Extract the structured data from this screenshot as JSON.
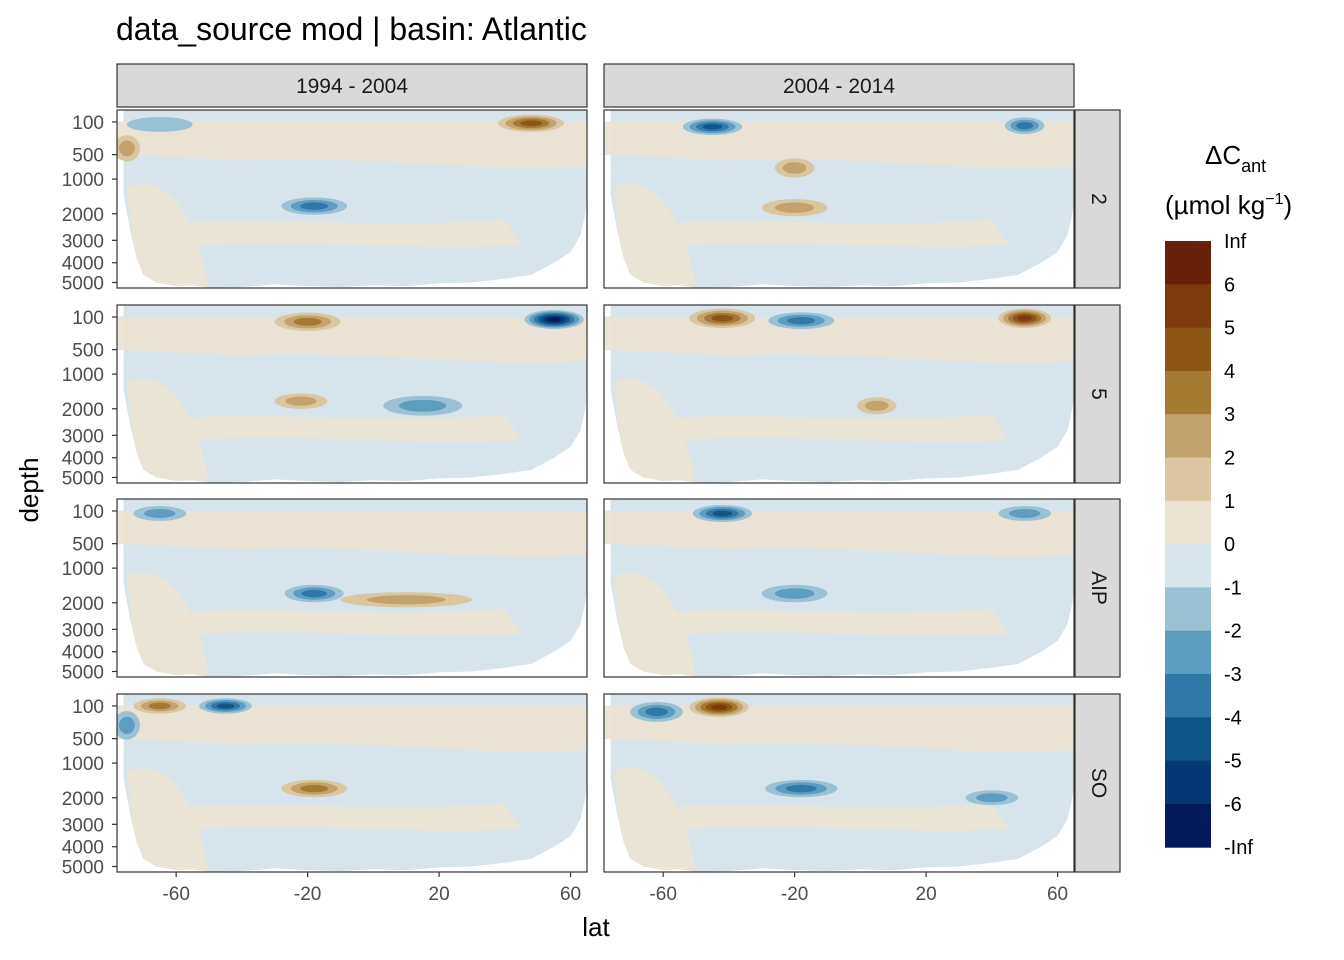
{
  "chart_data": {
    "type": "heatmap",
    "title": "data_source mod | basin: Atlantic",
    "xlabel": "lat",
    "ylabel": "depth",
    "x_ticks": [
      -60,
      -20,
      20,
      60
    ],
    "xlim": [
      -78,
      65
    ],
    "y_ticks": [
      100,
      500,
      1000,
      2000,
      3000,
      4000,
      5000
    ],
    "y_scale": "sqrt-like, reversed (depth increasing downward)",
    "column_facets": [
      "1994 - 2004",
      "2004 - 2014"
    ],
    "row_facets": [
      "2",
      "5",
      "AIP",
      "SO"
    ],
    "legend": {
      "title": "ΔC",
      "title_sub": "ant",
      "units_prefix": "(µmol kg",
      "units_sup": "−1",
      "units_suffix": ")",
      "labels": [
        "Inf",
        "6",
        "5",
        "4",
        "3",
        "2",
        "1",
        "0",
        "-1",
        "-2",
        "-3",
        "-4",
        "-5",
        "-6",
        "-Inf"
      ],
      "colors": [
        "#67200a",
        "#7d3a0c",
        "#8c5514",
        "#a47a33",
        "#c2a36d",
        "#dac7a1",
        "#ebe3d4",
        "#d7e4ec",
        "#9bc1d5",
        "#5d9dc0",
        "#2f78a8",
        "#0f5588",
        "#063875",
        "#021a5a"
      ],
      "placement": "right"
    },
    "panels": [
      {
        "row": "2",
        "col": "1994 - 2004",
        "features": [
          {
            "lat": -65,
            "depth": 120,
            "value": -1.5,
            "w": 10,
            "h": 30
          },
          {
            "lat": -18,
            "depth": 1750,
            "value": -3.5,
            "w": 10,
            "h": 150
          },
          {
            "lat": 48,
            "depth": 110,
            "value": 4.5,
            "w": 10,
            "h": 40
          },
          {
            "lat": -75,
            "depth": 400,
            "value": 2,
            "w": 4,
            "h": 150
          }
        ]
      },
      {
        "row": "2",
        "col": "2004 - 2014",
        "features": [
          {
            "lat": -45,
            "depth": 140,
            "value": -4,
            "w": 9,
            "h": 40
          },
          {
            "lat": -20,
            "depth": 1800,
            "value": 2.5,
            "w": 10,
            "h": 150
          },
          {
            "lat": 50,
            "depth": 130,
            "value": -3.5,
            "w": 6,
            "h": 40
          },
          {
            "lat": -20,
            "depth": 750,
            "value": 2,
            "w": 6,
            "h": 120
          }
        ]
      },
      {
        "row": "5",
        "col": "1994 - 2004",
        "features": [
          {
            "lat": -20,
            "depth": 140,
            "value": 3,
            "w": 10,
            "h": 50
          },
          {
            "lat": 55,
            "depth": 120,
            "value": -6,
            "w": 9,
            "h": 50
          },
          {
            "lat": -22,
            "depth": 1750,
            "value": 2,
            "w": 8,
            "h": 120
          },
          {
            "lat": 15,
            "depth": 1900,
            "value": -2,
            "w": 12,
            "h": 200
          }
        ]
      },
      {
        "row": "5",
        "col": "2004 - 2014",
        "features": [
          {
            "lat": -42,
            "depth": 110,
            "value": 4.5,
            "w": 10,
            "h": 50
          },
          {
            "lat": -18,
            "depth": 130,
            "value": -3.5,
            "w": 10,
            "h": 40
          },
          {
            "lat": 50,
            "depth": 110,
            "value": 5,
            "w": 8,
            "h": 50
          },
          {
            "lat": 5,
            "depth": 1900,
            "value": 2,
            "w": 6,
            "h": 150
          }
        ]
      },
      {
        "row": "AIP",
        "col": "1994 - 2004",
        "features": [
          {
            "lat": -18,
            "depth": 1700,
            "value": -3,
            "w": 9,
            "h": 150
          },
          {
            "lat": -65,
            "depth": 120,
            "value": -2,
            "w": 8,
            "h": 30
          },
          {
            "lat": 10,
            "depth": 1900,
            "value": 2,
            "w": 20,
            "h": 120
          }
        ]
      },
      {
        "row": "AIP",
        "col": "2004 - 2014",
        "features": [
          {
            "lat": -42,
            "depth": 120,
            "value": -4,
            "w": 9,
            "h": 40
          },
          {
            "lat": -20,
            "depth": 1700,
            "value": -2,
            "w": 10,
            "h": 150
          },
          {
            "lat": 50,
            "depth": 120,
            "value": -2,
            "w": 8,
            "h": 30
          }
        ]
      },
      {
        "row": "SO",
        "col": "1994 - 2004",
        "features": [
          {
            "lat": -65,
            "depth": 100,
            "value": 3,
            "w": 8,
            "h": 30
          },
          {
            "lat": -45,
            "depth": 100,
            "value": -4,
            "w": 8,
            "h": 30
          },
          {
            "lat": -18,
            "depth": 1700,
            "value": 3.5,
            "w": 10,
            "h": 150
          },
          {
            "lat": -75,
            "depth": 300,
            "value": -2,
            "w": 4,
            "h": 150
          }
        ]
      },
      {
        "row": "SO",
        "col": "2004 - 2014",
        "features": [
          {
            "lat": -43,
            "depth": 110,
            "value": 5,
            "w": 9,
            "h": 50
          },
          {
            "lat": -62,
            "depth": 150,
            "value": -3.5,
            "w": 8,
            "h": 60
          },
          {
            "lat": -18,
            "depth": 1700,
            "value": -3,
            "w": 11,
            "h": 150
          },
          {
            "lat": 40,
            "depth": 2000,
            "value": -2,
            "w": 8,
            "h": 120
          }
        ]
      }
    ]
  }
}
